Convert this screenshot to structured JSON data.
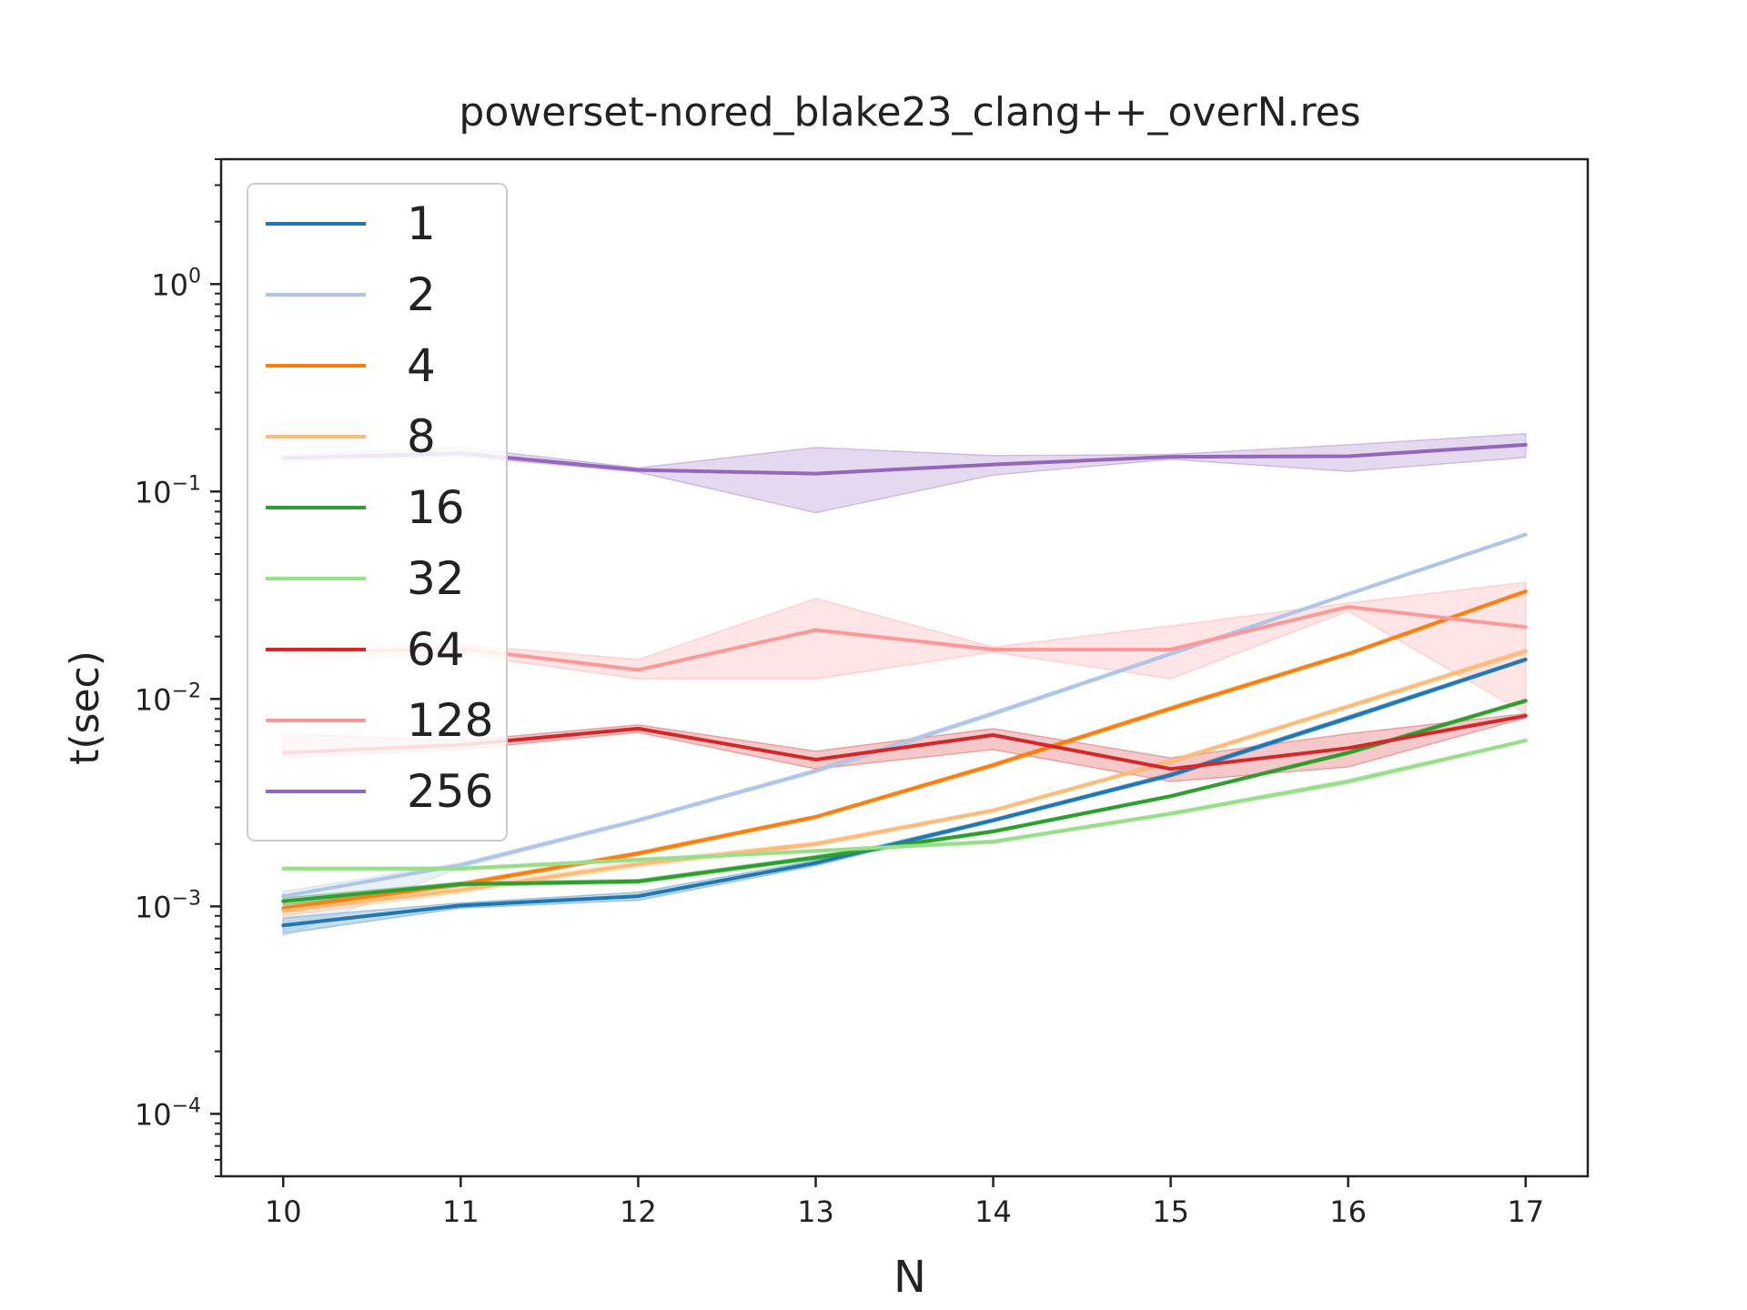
{
  "chart_data": {
    "type": "line",
    "title": "powerset-nored_blake23_clang++_overN.res",
    "xlabel": "N",
    "ylabel": "t(sec)",
    "yscale": "log",
    "xlim": [
      9.65,
      17.35
    ],
    "ylim": [
      5e-05,
      4
    ],
    "x_ticks": [
      10,
      11,
      12,
      13,
      14,
      15,
      16,
      17
    ],
    "x_tick_labels": [
      "10",
      "11",
      "12",
      "13",
      "14",
      "15",
      "16",
      "17"
    ],
    "y_ticks": [
      {
        "value": 0.0001,
        "base": "10",
        "exp": "−4"
      },
      {
        "value": 0.001,
        "base": "10",
        "exp": "−3"
      },
      {
        "value": 0.01,
        "base": "10",
        "exp": "−2"
      },
      {
        "value": 0.1,
        "base": "10",
        "exp": "−1"
      },
      {
        "value": 1,
        "base": "10",
        "exp": "0"
      }
    ],
    "grid": false,
    "legend_position": "upper-left",
    "x": [
      10,
      11,
      12,
      13,
      14,
      15,
      16,
      17
    ],
    "series": [
      {
        "name": "1",
        "color": "#1f77b4",
        "values": [
          0.00081,
          0.00101,
          0.00112,
          0.00162,
          0.0026,
          0.0043,
          0.0081,
          0.0155
        ],
        "band_lo": [
          0.00074,
          0.00098,
          0.00107,
          0.00157,
          0.00255,
          0.0042,
          0.0079,
          0.0152
        ],
        "band_hi": [
          0.00088,
          0.00104,
          0.00117,
          0.00167,
          0.00265,
          0.0044,
          0.0083,
          0.0158
        ]
      },
      {
        "name": "2",
        "color": "#aec7e8",
        "values": [
          0.00112,
          0.00158,
          0.0026,
          0.0045,
          0.0085,
          0.0165,
          0.032,
          0.062
        ],
        "band_lo": [
          0.00072,
          0.00154,
          0.00255,
          0.0044,
          0.0083,
          0.0162,
          0.0315,
          0.061
        ],
        "band_hi": [
          0.00118,
          0.00162,
          0.00265,
          0.0046,
          0.0087,
          0.0168,
          0.0325,
          0.063
        ]
      },
      {
        "name": "4",
        "color": "#ff7f0e",
        "values": [
          0.00098,
          0.00128,
          0.0018,
          0.0027,
          0.0048,
          0.009,
          0.0165,
          0.033
        ],
        "band_lo": [
          0.00095,
          0.00125,
          0.00176,
          0.00265,
          0.0047,
          0.0088,
          0.0162,
          0.0325
        ],
        "band_hi": [
          0.00101,
          0.00131,
          0.00184,
          0.00275,
          0.0049,
          0.0092,
          0.0168,
          0.0335
        ]
      },
      {
        "name": "8",
        "color": "#ffbb78",
        "values": [
          0.00095,
          0.0012,
          0.0016,
          0.002,
          0.0029,
          0.005,
          0.0092,
          0.017
        ],
        "band_lo": [
          0.0009,
          0.00116,
          0.00155,
          0.00195,
          0.00285,
          0.0049,
          0.009,
          0.0166
        ],
        "band_hi": [
          0.001,
          0.00124,
          0.00165,
          0.00205,
          0.00295,
          0.0051,
          0.0094,
          0.0174
        ]
      },
      {
        "name": "16",
        "color": "#2ca02c",
        "values": [
          0.00106,
          0.00128,
          0.00132,
          0.00172,
          0.0023,
          0.0034,
          0.0055,
          0.0098
        ],
        "band_lo": [
          0.00102,
          0.00125,
          0.00129,
          0.00168,
          0.00226,
          0.00335,
          0.0054,
          0.0096
        ],
        "band_hi": [
          0.0011,
          0.00131,
          0.00135,
          0.00176,
          0.00234,
          0.00345,
          0.0056,
          0.01
        ]
      },
      {
        "name": "32",
        "color": "#98df8a",
        "values": [
          0.00152,
          0.00152,
          0.00168,
          0.00185,
          0.00205,
          0.0028,
          0.004,
          0.0063
        ],
        "band_lo": [
          0.00149,
          0.00149,
          0.00165,
          0.00182,
          0.00201,
          0.00275,
          0.0039,
          0.0062
        ],
        "band_hi": [
          0.00155,
          0.00155,
          0.00171,
          0.00188,
          0.00209,
          0.00285,
          0.0041,
          0.0064
        ]
      },
      {
        "name": "64",
        "color": "#d62728",
        "values": [
          0.0055,
          0.006,
          0.0072,
          0.0051,
          0.0067,
          0.0046,
          0.0058,
          0.0083
        ],
        "band_lo": [
          0.0052,
          0.0057,
          0.0069,
          0.0046,
          0.0057,
          0.004,
          0.0047,
          0.0081
        ],
        "band_hi": [
          0.0068,
          0.0063,
          0.0075,
          0.0056,
          0.0072,
          0.0052,
          0.0068,
          0.0085
        ]
      },
      {
        "name": "128",
        "color": "#ff9896",
        "values": [
          0.0167,
          0.0175,
          0.0138,
          0.0215,
          0.0173,
          0.0173,
          0.0278,
          0.0222
        ],
        "band_lo": [
          0.0152,
          0.0165,
          0.0125,
          0.0125,
          0.0168,
          0.0125,
          0.0265,
          0.0085
        ],
        "band_hi": [
          0.0175,
          0.0183,
          0.0155,
          0.0305,
          0.0178,
          0.0225,
          0.029,
          0.0365
        ]
      },
      {
        "name": "256",
        "color": "#9467bd",
        "values": [
          0.145,
          0.153,
          0.127,
          0.122,
          0.135,
          0.147,
          0.148,
          0.168
        ],
        "band_lo": [
          0.14,
          0.148,
          0.124,
          0.079,
          0.12,
          0.143,
          0.125,
          0.146
        ],
        "band_hi": [
          0.15,
          0.163,
          0.13,
          0.163,
          0.149,
          0.151,
          0.168,
          0.19
        ]
      }
    ]
  }
}
